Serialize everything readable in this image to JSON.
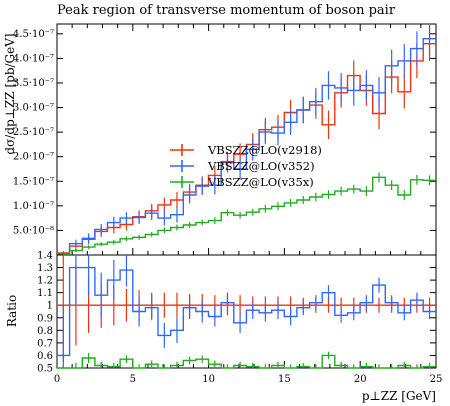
{
  "chart_data": [
    {
      "panel": "main",
      "type": "line",
      "title": "Peak region of transverse momentum of boson pair",
      "ylabel": "dσ/dp⊥ZZ [pb/GeV]",
      "xlabel": "",
      "xlim": [
        0,
        25
      ],
      "ylim": [
        0,
        4.7e-07
      ],
      "yticks": [
        {
          "v": 5e-08,
          "label": "5.0·10⁻⁸"
        },
        {
          "v": 1e-07,
          "label": "1.0·10⁻⁷"
        },
        {
          "v": 1.5e-07,
          "label": "1.5·10⁻⁷"
        },
        {
          "v": 2e-07,
          "label": "2.0·10⁻⁷"
        },
        {
          "v": 2.5e-07,
          "label": "2.5·10⁻⁷"
        },
        {
          "v": 3e-07,
          "label": "3.0·10⁻⁷"
        },
        {
          "v": 3.5e-07,
          "label": "3.5·10⁻⁷"
        },
        {
          "v": 4e-07,
          "label": "4.0·10⁻⁷"
        },
        {
          "v": 4.5e-07,
          "label": "4.5·10⁻⁷"
        }
      ],
      "bin_width": 0.833,
      "legend_position": "center",
      "series": [
        {
          "name": "VBSZZ@LO(v2918)",
          "color": "#ee3311",
          "values": [
            4e-09,
            1.8e-08,
            3.2e-08,
            4.8e-08,
            5.6e-08,
            6.2e-08,
            7.8e-08,
            9e-08,
            1.02e-07,
            1.12e-07,
            1.28e-07,
            1.42e-07,
            1.62e-07,
            1.88e-07,
            2.05e-07,
            2.25e-07,
            2.55e-07,
            2.6e-07,
            2.9e-07,
            2.95e-07,
            3.05e-07,
            2.65e-07,
            3.3e-07,
            3.65e-07,
            3.35e-07,
            2.88e-07,
            3.62e-07,
            3.32e-07,
            3.95e-07,
            4.3e-07
          ],
          "errors": [
            4e-09,
            8e-09,
            1e-08,
            1.1e-08,
            1.2e-08,
            1.2e-08,
            1.3e-08,
            1.4e-08,
            1.5e-08,
            1.6e-08,
            1.7e-08,
            1.8e-08,
            1.9e-08,
            2e-08,
            2.2e-08,
            2.3e-08,
            2.4e-08,
            2.5e-08,
            2.6e-08,
            2.7e-08,
            2.8e-08,
            2.9e-08,
            3e-08,
            3.1e-08,
            3.1e-08,
            3.2e-08,
            3.3e-08,
            3.4e-08,
            3.5e-08,
            3.5e-08
          ]
        },
        {
          "name": "VBSZZ@LO(v352)",
          "color": "#3366ff",
          "values": [
            2e-09,
            2.3e-08,
            3.4e-08,
            5.2e-08,
            6.6e-08,
            7.5e-08,
            7.6e-08,
            8.5e-08,
            7.5e-08,
            8.2e-08,
            1.22e-07,
            1.4e-07,
            1.42e-07,
            1.9e-07,
            1.75e-07,
            2.15e-07,
            2.5e-07,
            2.48e-07,
            2.7e-07,
            2.95e-07,
            3.12e-07,
            3.45e-07,
            3.4e-07,
            3.35e-07,
            3.45e-07,
            3.3e-07,
            3.85e-07,
            3.95e-07,
            4.2e-07,
            4.4e-07
          ],
          "errors": [
            2e-09,
            8e-09,
            1e-08,
            1.1e-08,
            1.2e-08,
            1.2e-08,
            1.3e-08,
            1.4e-08,
            1.5e-08,
            1.6e-08,
            1.7e-08,
            1.8e-08,
            1.9e-08,
            2e-08,
            2.2e-08,
            2.3e-08,
            2.4e-08,
            2.5e-08,
            2.6e-08,
            2.7e-08,
            2.8e-08,
            2.9e-08,
            3e-08,
            3.1e-08,
            3.1e-08,
            3.2e-08,
            3.3e-08,
            3.4e-08,
            3.5e-08,
            3.5e-08
          ]
        },
        {
          "name": "VBSZZ@LO(v35x)",
          "color": "#22aa22",
          "values": [
            2e-09,
            9e-09,
            1.6e-08,
            2.2e-08,
            2.6e-08,
            3.3e-08,
            3.6e-08,
            4.2e-08,
            5e-08,
            5.6e-08,
            6.1e-08,
            6.6e-08,
            7e-08,
            8.6e-08,
            8.1e-08,
            8.7e-08,
            9.4e-08,
            9.9e-08,
            1.06e-07,
            1.12e-07,
            1.18e-07,
            1.23e-07,
            1.3e-07,
            1.34e-07,
            1.3e-07,
            1.58e-07,
            1.42e-07,
            1.22e-07,
            1.53e-07,
            1.52e-07
          ],
          "errors": [
            1e-09,
            3e-09,
            4e-09,
            4e-09,
            5e-09,
            5e-09,
            5e-09,
            5e-09,
            6e-09,
            6e-09,
            6e-09,
            6e-09,
            7e-09,
            7e-09,
            7e-09,
            7e-09,
            8e-09,
            8e-09,
            8e-09,
            8e-09,
            9e-09,
            9e-09,
            9e-09,
            9e-09,
            1e-08,
            1e-08,
            1e-08,
            1e-08,
            1e-08,
            1e-08
          ]
        }
      ]
    },
    {
      "panel": "ratio",
      "type": "line",
      "ylabel": "Ratio",
      "xlabel": "p⊥ZZ [GeV]",
      "xlim": [
        0,
        25
      ],
      "ylim": [
        0.5,
        1.4
      ],
      "yticks": [
        0.5,
        0.6,
        0.7,
        0.8,
        0.9,
        1,
        1.1,
        1.2,
        1.3,
        1.4
      ],
      "xticks": [
        0,
        5,
        10,
        15,
        20,
        25
      ],
      "bin_width": 0.833,
      "series": [
        {
          "name": "VBSZZ@LO(v2918)",
          "color": "#ee3311",
          "values": [
            1,
            1,
            1,
            1,
            1,
            1,
            1,
            1,
            1,
            1,
            1,
            1,
            1,
            1,
            1,
            1,
            1,
            1,
            1,
            1,
            1,
            1,
            1,
            1,
            1,
            1,
            1,
            1,
            1,
            1
          ],
          "errors": [
            0.45,
            0.32,
            0.22,
            0.18,
            0.16,
            0.13,
            0.12,
            0.1,
            0.1,
            0.1,
            0.09,
            0.09,
            0.08,
            0.08,
            0.08,
            0.07,
            0.07,
            0.07,
            0.07,
            0.06,
            0.06,
            0.06,
            0.06,
            0.06,
            0.06,
            0.06,
            0.06,
            0.06,
            0.06,
            0.06
          ]
        },
        {
          "name": "VBSZZ@LO(v352)",
          "color": "#3366ff",
          "values": [
            0.6,
            1.3,
            1.3,
            1.08,
            1.2,
            1.28,
            0.95,
            0.98,
            0.76,
            0.8,
            0.98,
            0.95,
            0.91,
            1.02,
            0.86,
            0.96,
            0.94,
            0.96,
            0.91,
            0.98,
            1.02,
            1.1,
            0.92,
            0.94,
            1.02,
            1.16,
            1.02,
            0.94,
            1.04,
            0.95
          ],
          "errors": [
            0.4,
            0.3,
            0.22,
            0.18,
            0.16,
            0.13,
            0.12,
            0.1,
            0.1,
            0.1,
            0.09,
            0.09,
            0.08,
            0.08,
            0.08,
            0.07,
            0.07,
            0.07,
            0.07,
            0.06,
            0.06,
            0.06,
            0.06,
            0.06,
            0.06,
            0.06,
            0.06,
            0.06,
            0.06,
            0.06
          ]
        },
        {
          "name": "VBSZZ@LO(v35x)",
          "color": "#22aa22",
          "values": [
            0.5,
            0.5,
            0.58,
            0.52,
            0.51,
            0.57,
            0.5,
            0.53,
            0.5,
            0.52,
            0.56,
            0.57,
            0.53,
            0.5,
            0.52,
            0.51,
            0.5,
            0.52,
            0.5,
            0.51,
            0.5,
            0.6,
            0.52,
            0.5,
            0.51,
            0.5,
            0.5,
            0.52,
            0.5,
            0.51
          ],
          "errors": [
            0.03,
            0.04,
            0.04,
            0.03,
            0.03,
            0.03,
            0.03,
            0.03,
            0.03,
            0.03,
            0.03,
            0.03,
            0.03,
            0.03,
            0.03,
            0.03,
            0.03,
            0.03,
            0.03,
            0.03,
            0.03,
            0.03,
            0.03,
            0.03,
            0.03,
            0.03,
            0.03,
            0.03,
            0.03,
            0.03
          ]
        }
      ]
    }
  ]
}
